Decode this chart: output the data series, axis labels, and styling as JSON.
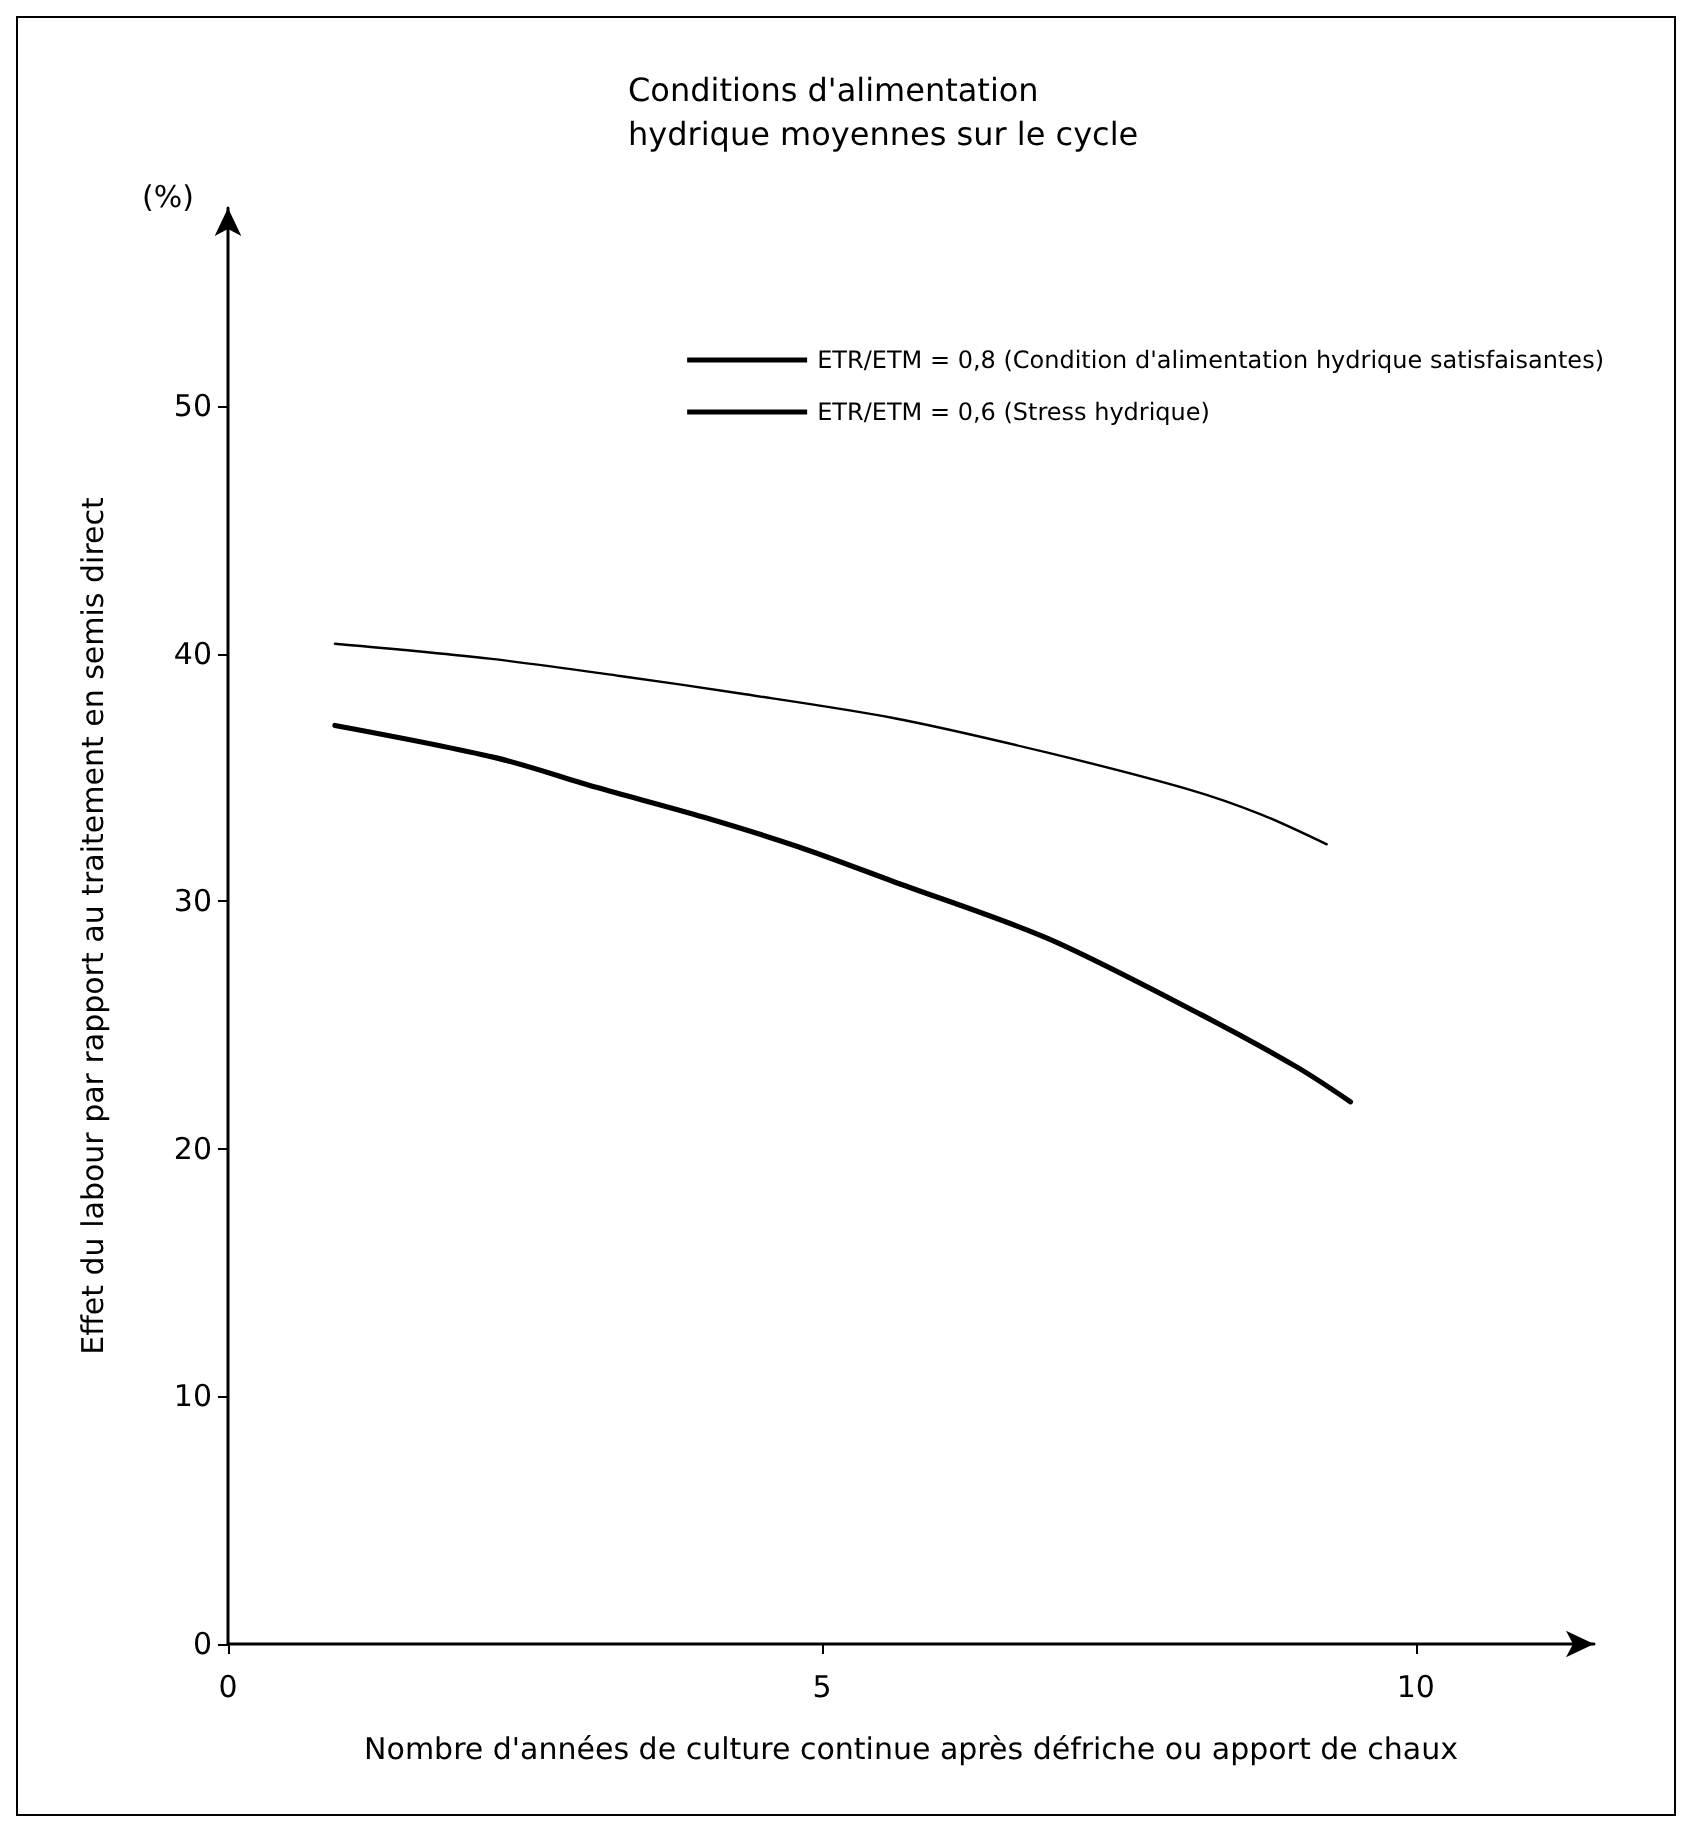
{
  "chart_data": {
    "type": "line",
    "title": "Conditions d'alimentation hydrique moyennes sur le cycle",
    "xlabel": "Nombre d'années de culture continue après défriche ou apport de chaux",
    "ylabel": "Effet du labour par rapport au traitement en semis direct",
    "annotations": [
      "(%)"
    ],
    "series": [
      {
        "name": "ETR/ETM = 0,8 (Condition d'alimentation hydrique satisfaisantes)",
        "color": "#000000",
        "x": [
          0.9,
          2.2,
          3.3,
          4.3,
          5.6,
          6.9,
          8.1,
          8.7,
          9.25
        ],
        "values": [
          40.4,
          39.8,
          39.1,
          38.4,
          37.4,
          36.0,
          34.5,
          33.5,
          32.3
        ]
      },
      {
        "name": "ETR/ETM = 0,6 (Stress hydrique)",
        "color": "#000000",
        "x": [
          0.9,
          2.25,
          3.1,
          4.0,
          4.8,
          5.6,
          6.9,
          8.2,
          9.0,
          9.45
        ],
        "values": [
          37.1,
          35.8,
          34.6,
          33.4,
          32.2,
          30.8,
          28.5,
          25.4,
          23.3,
          21.9
        ]
      }
    ],
    "xlim": [
      0,
      11.5
    ],
    "ylim": [
      0,
      58
    ],
    "xticks": [
      0,
      5,
      10
    ],
    "yticks": [
      0,
      10,
      20,
      30,
      40,
      50
    ],
    "grid": false,
    "legend": "top right",
    "marker": "none",
    "line_style": "solid"
  }
}
